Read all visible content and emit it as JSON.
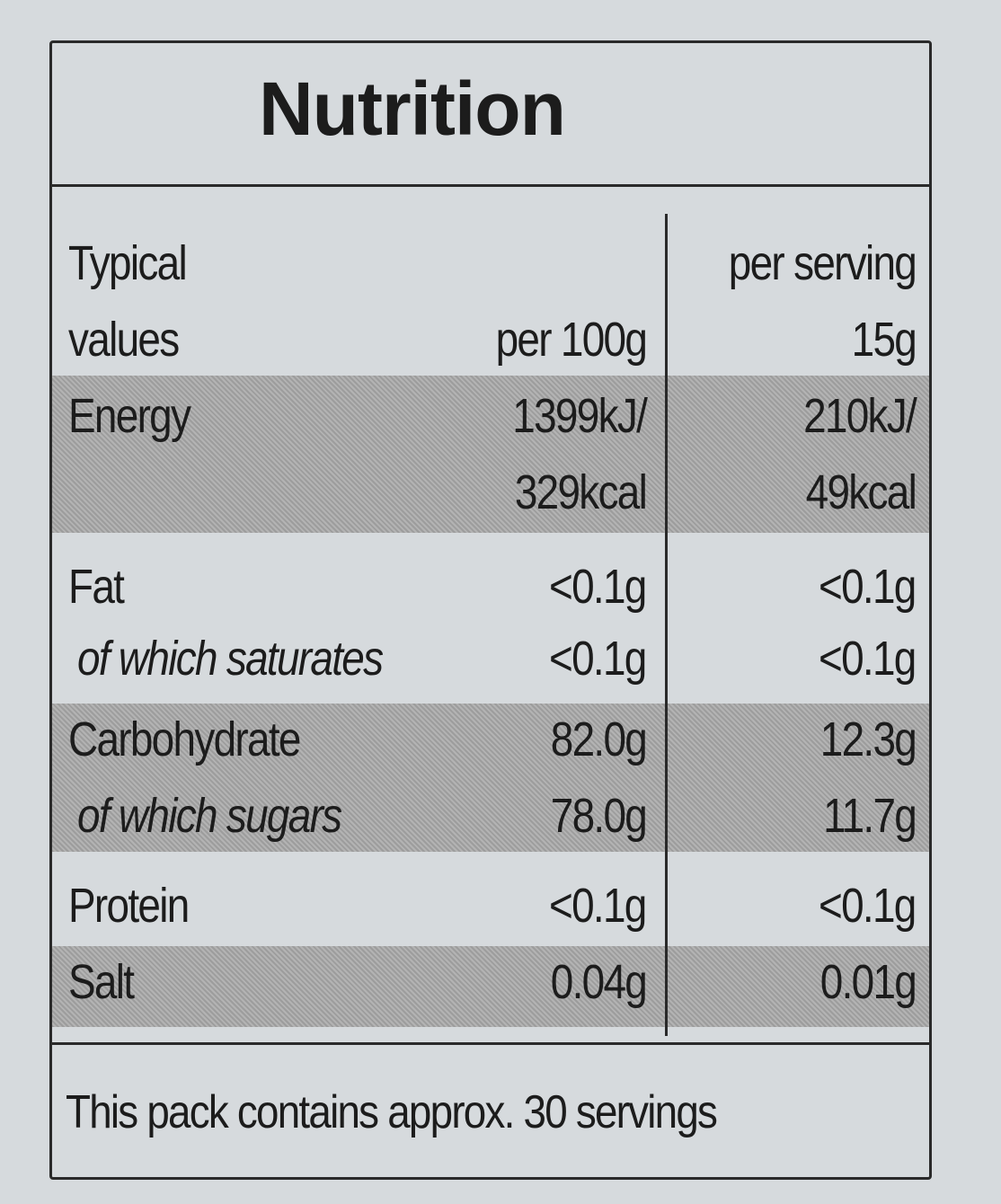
{
  "title": "Nutrition",
  "header": {
    "label": [
      "Typical",
      "values"
    ],
    "per_100g": "per 100g",
    "per_serving": [
      "per serving",
      "15g"
    ]
  },
  "rows": [
    {
      "label": "Energy",
      "per_100g": [
        "1399kJ/",
        "329kcal"
      ],
      "per_serving": [
        "210kJ/",
        "49kcal"
      ]
    },
    {
      "label": "Fat",
      "per_100g": "<0.1g",
      "per_serving": "<0.1g"
    },
    {
      "label": "of which saturates",
      "per_100g": "<0.1g",
      "per_serving": "<0.1g"
    },
    {
      "label": "Carbohydrate",
      "per_100g": "82.0g",
      "per_serving": "12.3g"
    },
    {
      "label": "of which sugars",
      "per_100g": "78.0g",
      "per_serving": "11.7g"
    },
    {
      "label": "Protein",
      "per_100g": "<0.1g",
      "per_serving": "<0.1g"
    },
    {
      "label": "Salt",
      "per_100g": "0.04g",
      "per_serving": "0.01g"
    }
  ],
  "footer": "This pack contains approx. 30 servings"
}
